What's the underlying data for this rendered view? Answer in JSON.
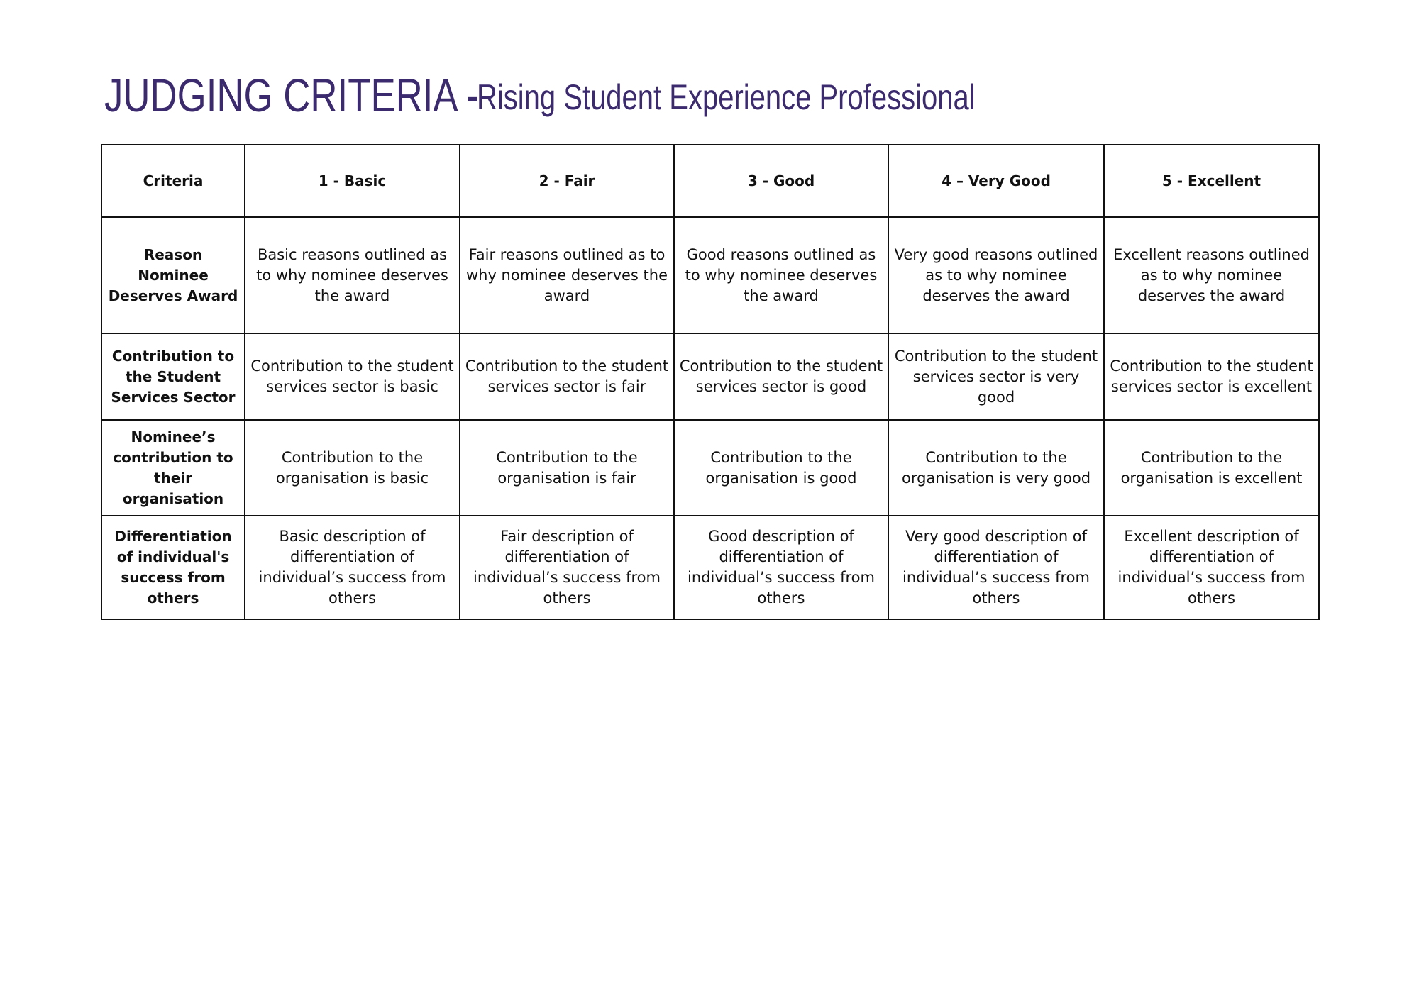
{
  "title": {
    "main": "JUDGING CRITERIA -",
    "sub": "Rising Student Experience Professional",
    "color": "#3c2a6e"
  },
  "table": {
    "headers": [
      "Criteria",
      "1 - Basic",
      "2 - Fair",
      "3 - Good",
      "4 – Very Good",
      "5 - Excellent"
    ],
    "rows": [
      [
        "Reason Nominee Deserves Award",
        "Basic reasons outlined as to why nominee deserves the award",
        "Fair reasons outlined as to why nominee deserves the award",
        "Good reasons outlined as to why nominee deserves the award",
        "Very good reasons outlined as to why nominee deserves the award",
        "Excellent  reasons outlined as to why nominee deserves the award"
      ],
      [
        "Contribution to the Student Services Sector",
        "Contribution to the student services sector is basic",
        "Contribution to the student services sector is fair",
        "Contribution to the student services sector is good",
        "Contribution to the student services sector is very good",
        "Contribution to the student services sector is excellent"
      ],
      [
        "Nominee’s contribution to their organisation",
        "Contribution to the organisation is basic",
        "Contribution to the organisation is fair",
        "Contribution to the organisation is good",
        "Contribution to the organisation is very good",
        "Contribution to the organisation is excellent"
      ],
      [
        "Differentiation of individual's success from others",
        "Basic description of differentiation of individual’s success from others",
        "Fair description of differentiation of individual’s success from others",
        "Good description of differentiation of individual’s success from others",
        "Very good description of differentiation of individual’s success from others",
        "Excellent description of differentiation of individual’s success from others"
      ]
    ]
  }
}
